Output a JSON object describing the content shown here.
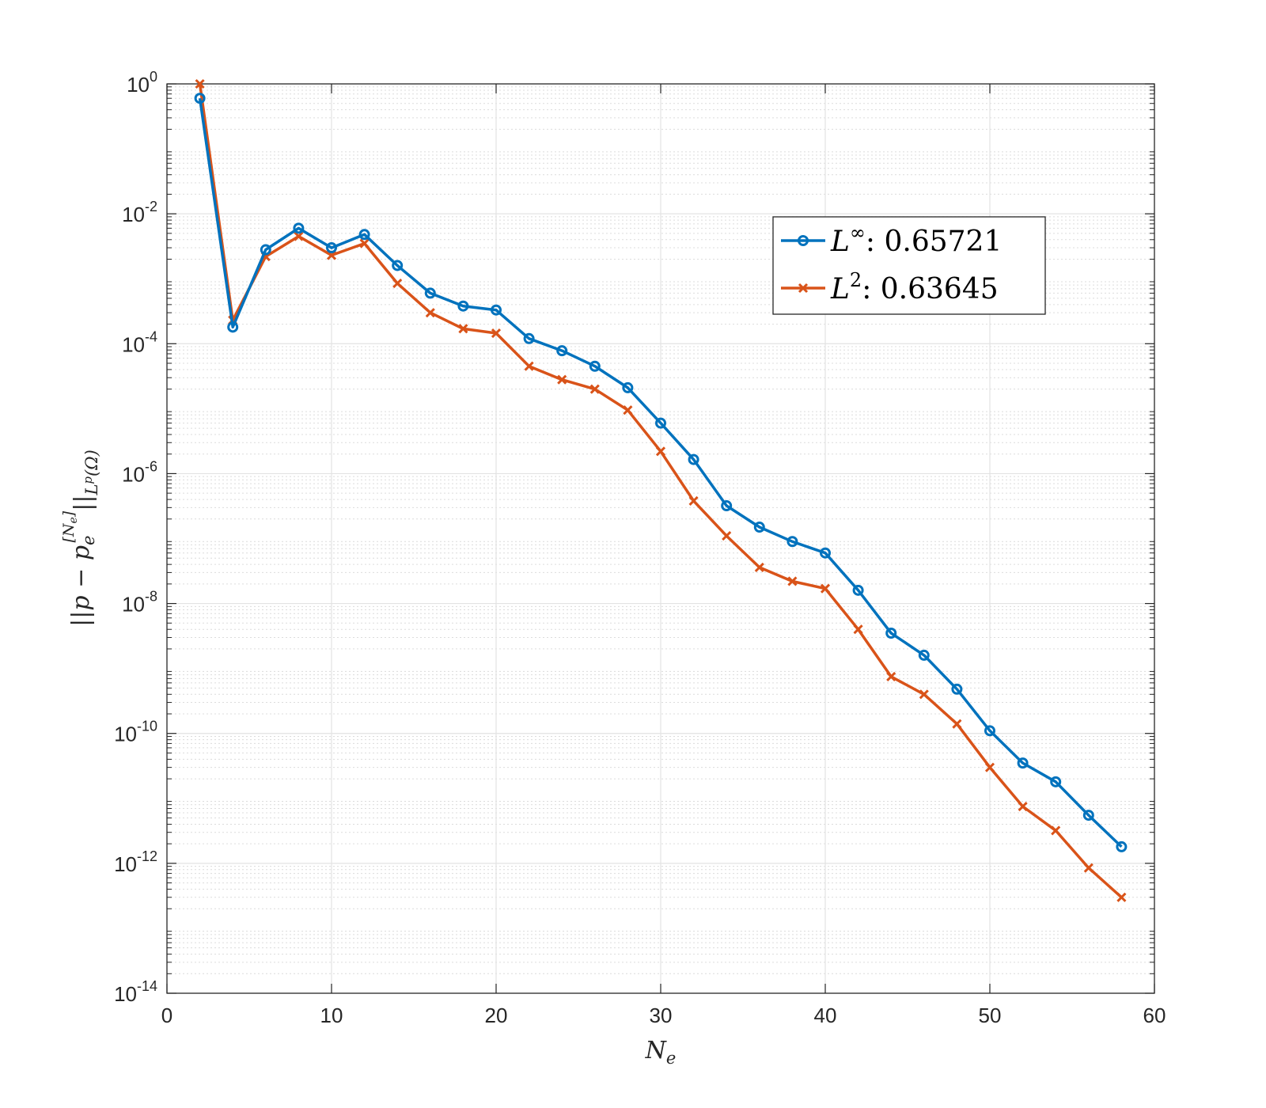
{
  "chart_data": {
    "type": "line",
    "yscale": "log",
    "xlim": [
      0,
      60
    ],
    "ylim_exponents": [
      -14,
      0
    ],
    "xticks": [
      0,
      10,
      20,
      30,
      40,
      50,
      60
    ],
    "xtick_labels": [
      "0",
      "10",
      "20",
      "30",
      "40",
      "50",
      "60"
    ],
    "yticks": [
      {
        "base": "10",
        "exp": "0",
        "value": 1
      },
      {
        "base": "10",
        "exp": "-2",
        "value": 0.01
      },
      {
        "base": "10",
        "exp": "-4",
        "value": 0.0001
      },
      {
        "base": "10",
        "exp": "-6",
        "value": 1e-06
      },
      {
        "base": "10",
        "exp": "-8",
        "value": 1e-08
      },
      {
        "base": "10",
        "exp": "-10",
        "value": 1e-10
      },
      {
        "base": "10",
        "exp": "-12",
        "value": 1e-12
      },
      {
        "base": "10",
        "exp": "-14",
        "value": 1e-14
      }
    ],
    "xlabel": {
      "base": "N",
      "sub": "e"
    },
    "ylabel": {
      "left": "||p − p",
      "sub": "e",
      "sup": "[N",
      "sup_sub": "e",
      "sup_end": "]",
      "right": "||",
      "norm_sub": "L",
      "norm_sup": "p",
      "norm_end": "(Ω)"
    },
    "grid": true,
    "legend_position": "upper-right-inset",
    "x": [
      2,
      4,
      6,
      8,
      10,
      12,
      14,
      16,
      18,
      20,
      22,
      24,
      26,
      28,
      30,
      32,
      34,
      36,
      38,
      40,
      42,
      44,
      46,
      48,
      50,
      52,
      54,
      56,
      58
    ],
    "series": [
      {
        "name": "L∞",
        "legend_base": "L",
        "legend_sup": "∞",
        "legend_value": ": 0.65721",
        "color": "#0072BD",
        "marker": "circle",
        "values": [
          0.6,
          0.00018,
          0.0028,
          0.006,
          0.003,
          0.0048,
          0.0016,
          0.0006,
          0.00038,
          0.00033,
          0.00012,
          7.8e-05,
          4.5e-05,
          2.1e-05,
          6e-06,
          1.65e-06,
          3.2e-07,
          1.5e-07,
          9e-08,
          6e-08,
          1.6e-08,
          3.5e-09,
          1.6e-09,
          4.8e-10,
          1.1e-10,
          3.5e-11,
          1.8e-11,
          5.5e-12,
          1.8e-12
        ]
      },
      {
        "name": "L2",
        "legend_base": "L",
        "legend_sup": "2",
        "legend_value": ": 0.63645",
        "color": "#D95319",
        "marker": "x",
        "values": [
          1.0,
          0.00023,
          0.0022,
          0.0045,
          0.0023,
          0.0035,
          0.00085,
          0.0003,
          0.00017,
          0.000145,
          4.5e-05,
          2.8e-05,
          2e-05,
          9.5e-06,
          2.2e-06,
          3.8e-07,
          1.1e-07,
          3.6e-08,
          2.2e-08,
          1.7e-08,
          4e-09,
          7.5e-10,
          4e-10,
          1.4e-10,
          3e-11,
          7.5e-12,
          3.2e-12,
          8.5e-13,
          3e-13
        ]
      }
    ]
  }
}
